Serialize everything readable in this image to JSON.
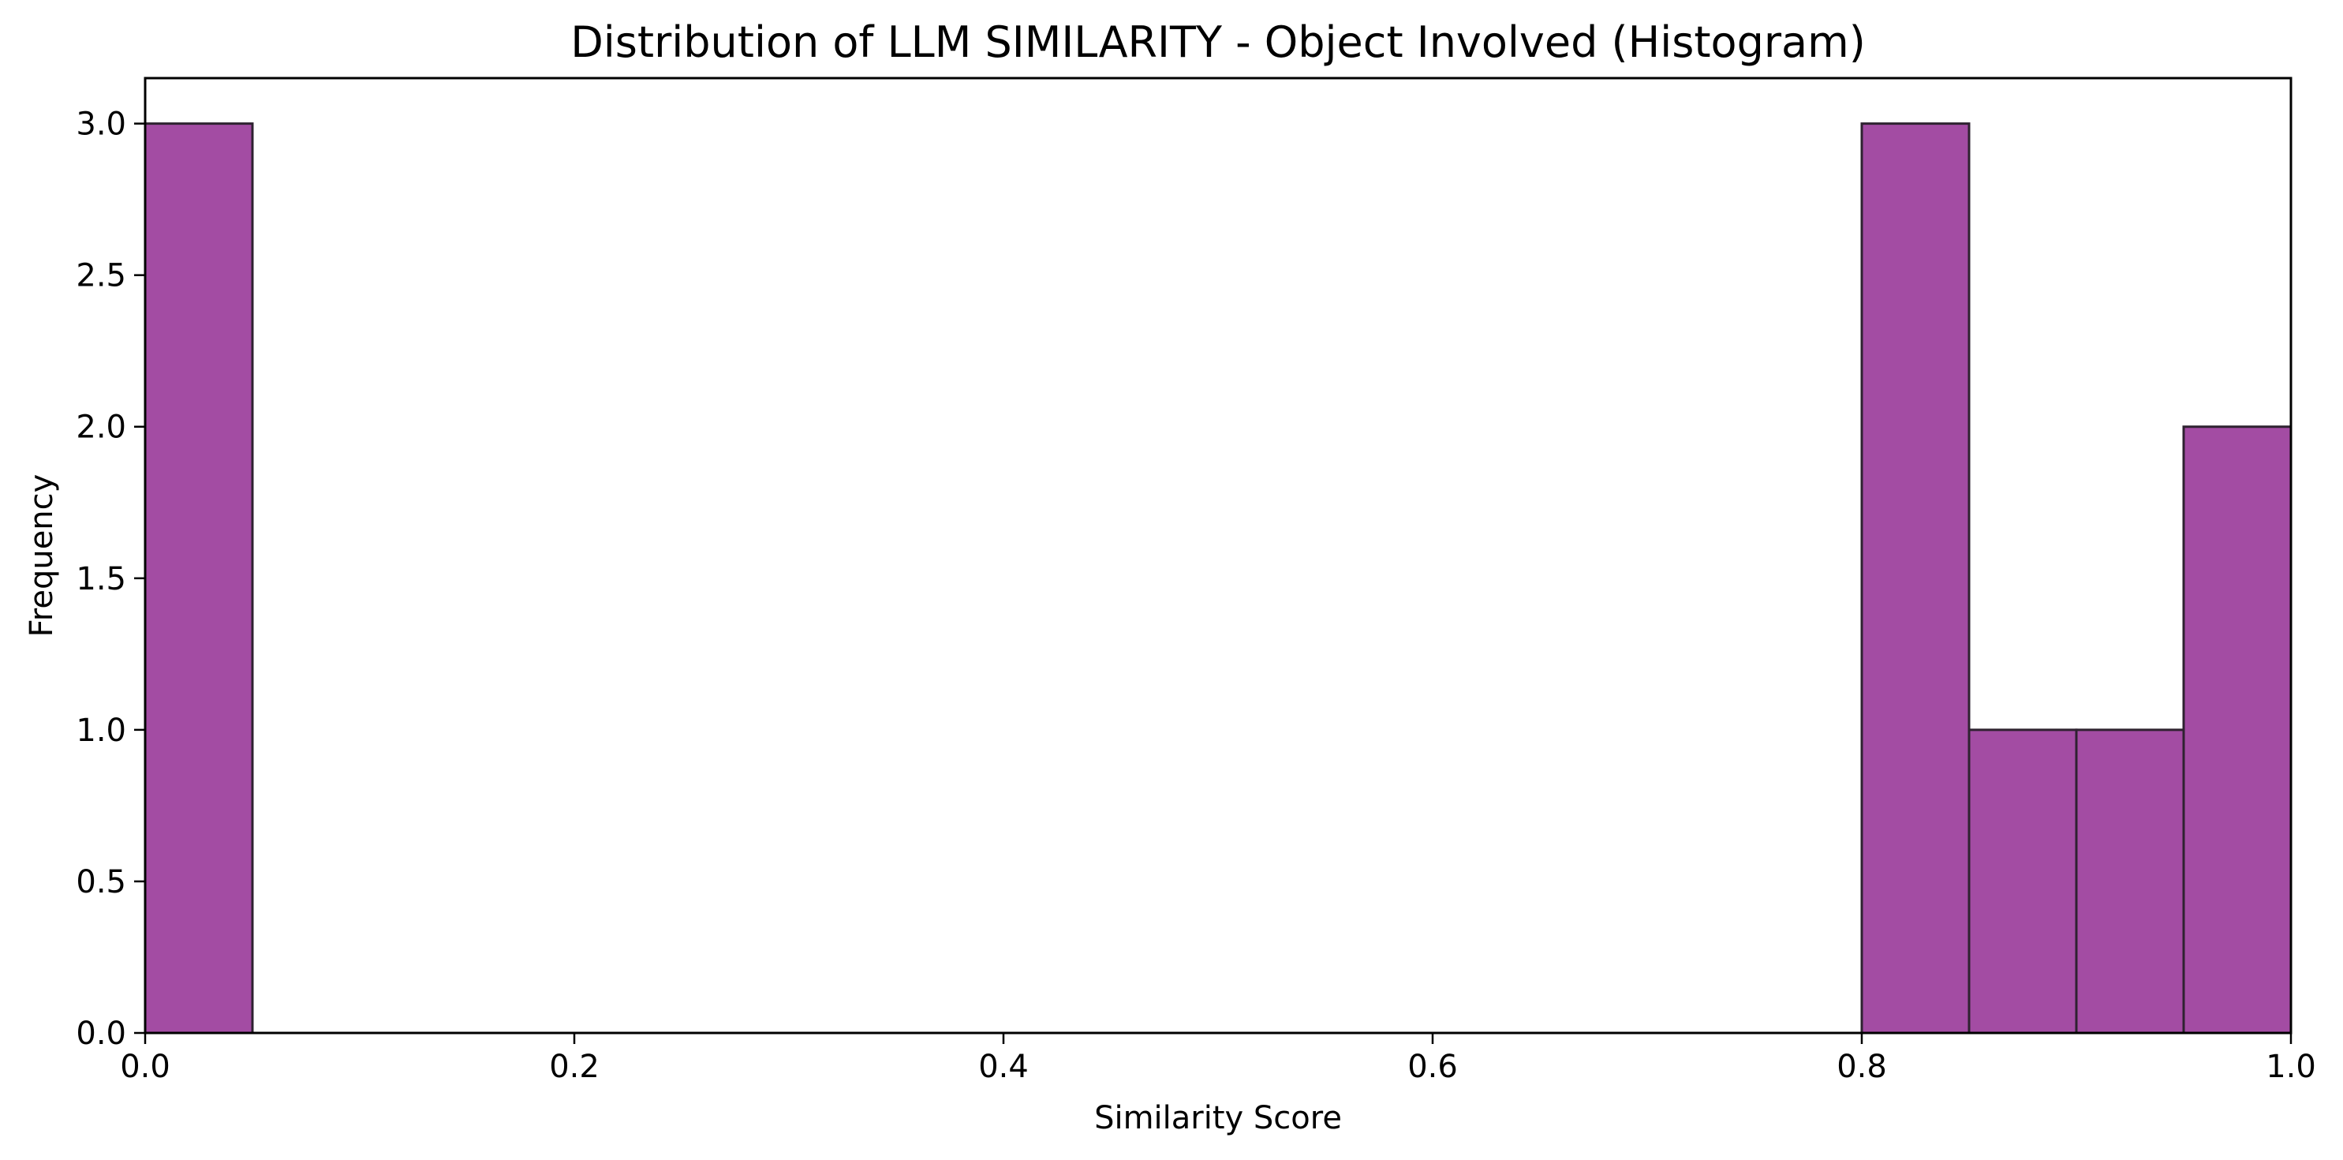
{
  "chart_data": {
    "type": "bar",
    "title": "Distribution of LLM SIMILARITY - Object Involved (Histogram)",
    "xlabel": "Similarity Score",
    "ylabel": "Frequency",
    "xlim": [
      0.0,
      1.0
    ],
    "ylim": [
      0.0,
      3.15
    ],
    "x_ticks": [
      "0.0",
      "0.2",
      "0.4",
      "0.6",
      "0.8",
      "1.0"
    ],
    "y_ticks": [
      "0.0",
      "0.5",
      "1.0",
      "1.5",
      "2.0",
      "2.5",
      "3.0"
    ],
    "bin_width": 0.05,
    "bin_starts": [
      0.0,
      0.8,
      0.85,
      0.9,
      0.95
    ],
    "values": [
      3,
      3,
      1,
      1,
      2
    ],
    "grid": false,
    "legend": "none",
    "bar_color": "#a34ca3",
    "bar_edge_color": "#2e2230"
  }
}
